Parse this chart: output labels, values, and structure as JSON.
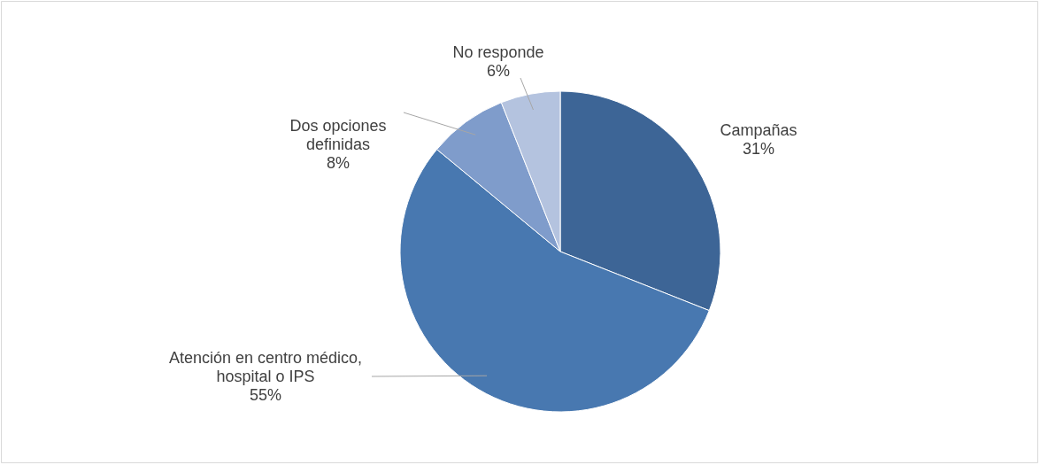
{
  "chart_data": {
    "type": "pie",
    "categories": [
      "Campañas",
      "Atención en centro médico, hospital o IPS",
      "Dos opciones definidas",
      "No responde"
    ],
    "values": [
      31,
      55,
      8,
      6
    ],
    "colors": [
      "#3d6596",
      "#4878b0",
      "#7f9ccb",
      "#b4c3df"
    ],
    "value_labels": [
      "31%",
      "55%",
      "8%",
      "6%"
    ]
  }
}
